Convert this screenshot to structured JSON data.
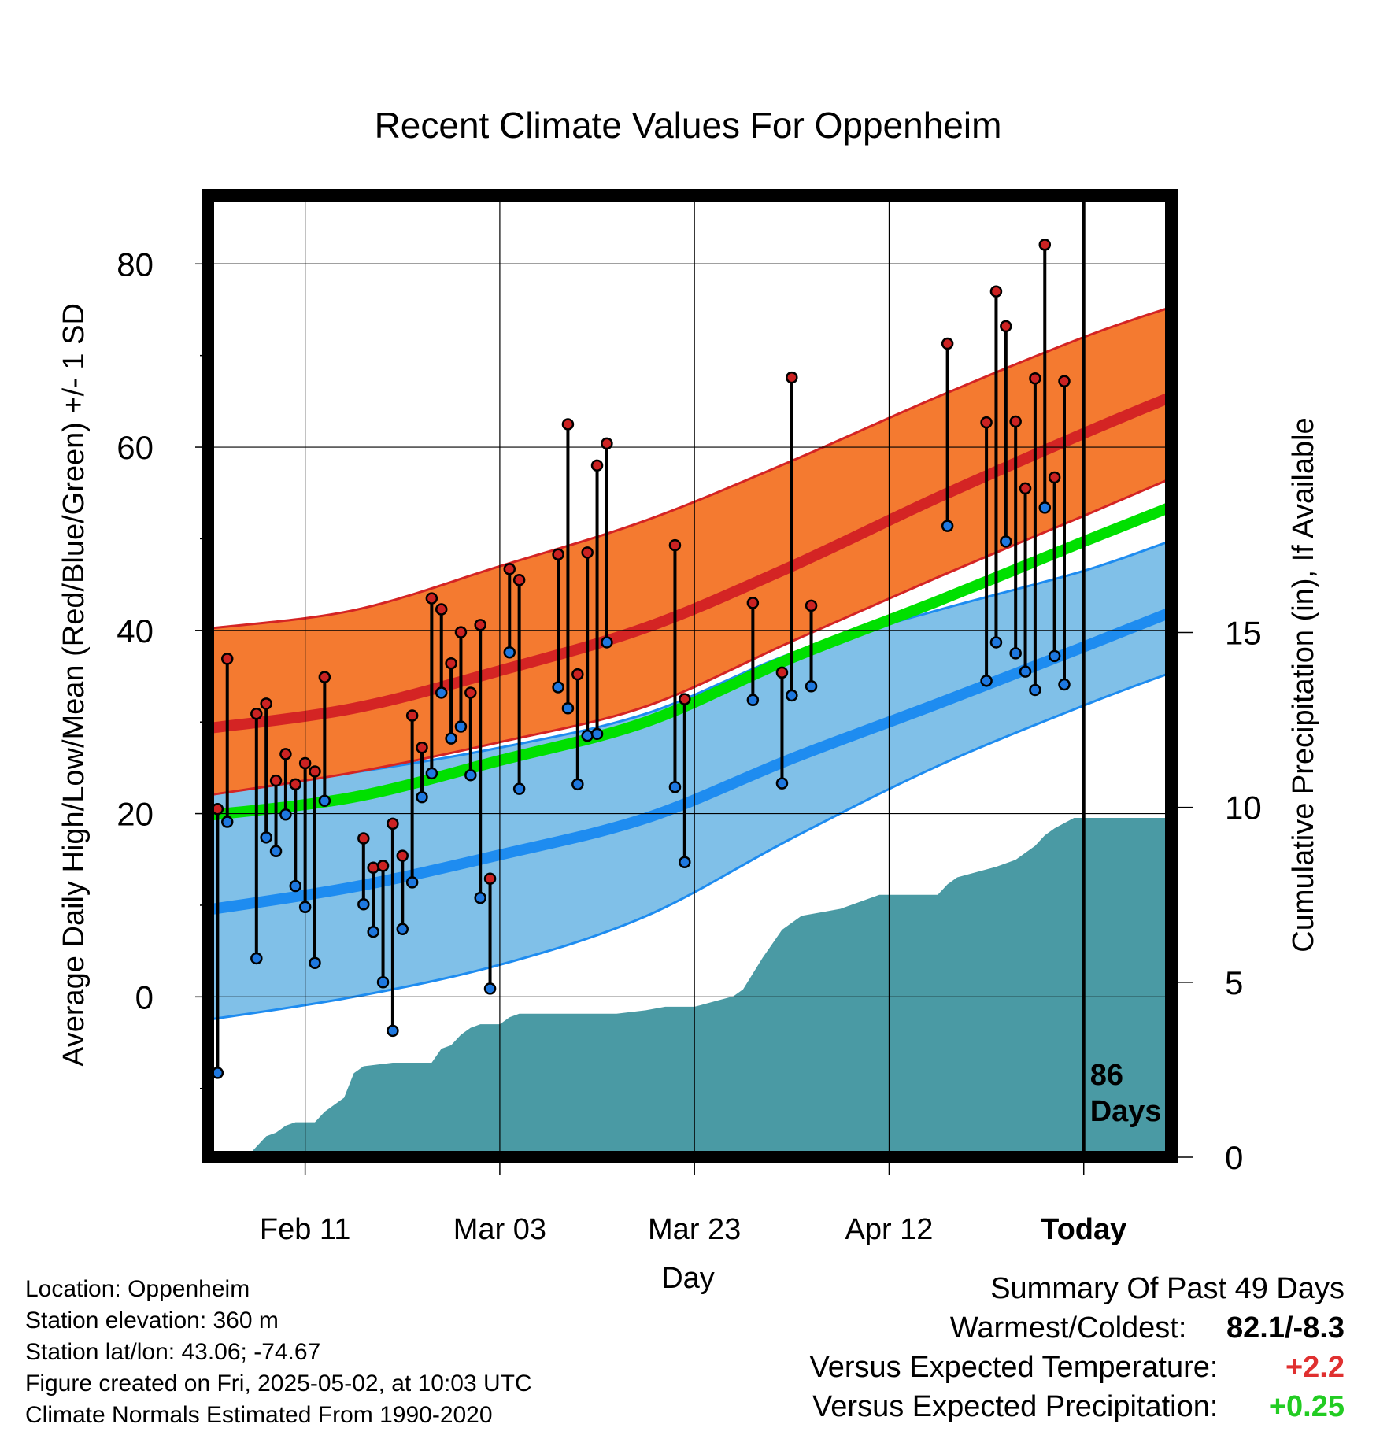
{
  "chart_data": {
    "type": "line",
    "title": "Recent Climate Values For Oppenheim",
    "xlabel": "Day",
    "ylabel": "Average Daily High/Low/Mean (Red/Blue/Green) +/- 1 SD",
    "y2label": "Cumulative Precipitation (in), If Available",
    "x_tick_labels": [
      "Feb 11",
      "Mar 03",
      "Mar 23",
      "Apr 12",
      "Today"
    ],
    "y_ticks": [
      0,
      20,
      40,
      60,
      80
    ],
    "y2_ticks": [
      0,
      5,
      10,
      15
    ],
    "xlim": [
      "2025-02-01",
      "2025-05-11"
    ],
    "ylim": [
      -17.5,
      87.5
    ],
    "y2lim": [
      0,
      27.5
    ],
    "grid": true,
    "today": "2025-05-02",
    "today_marker_label": "86\nDays",
    "normals_x": [
      "2025-02-01",
      "2025-02-16",
      "2025-03-03",
      "2025-03-18",
      "2025-04-02",
      "2025-04-17",
      "2025-05-02",
      "2025-05-11"
    ],
    "normal_high": [
      29.3,
      31.5,
      35.6,
      40.3,
      47.0,
      54.5,
      61.5,
      65.5
    ],
    "normal_high_upper": [
      40.2,
      42.2,
      47.0,
      52.0,
      58.5,
      65.5,
      72.0,
      75.3
    ],
    "normal_high_lower": [
      22.0,
      24.5,
      27.8,
      31.7,
      38.8,
      45.8,
      52.5,
      56.6
    ],
    "normal_mean": [
      19.8,
      21.8,
      25.8,
      30.0,
      37.0,
      43.2,
      49.7,
      53.5
    ],
    "normal_low": [
      9.5,
      12.0,
      15.5,
      19.5,
      26.0,
      32.0,
      38.2,
      42.0
    ],
    "normal_low_upper": [
      22.5,
      24.5,
      27.2,
      30.9,
      37.5,
      42.2,
      46.5,
      49.8
    ],
    "normal_low_lower": [
      -2.5,
      0.0,
      3.5,
      8.8,
      17.3,
      25.2,
      31.8,
      35.4
    ],
    "daily": [
      {
        "date": "2025-02-01",
        "high": 29,
        "low": -5.3
      },
      {
        "date": "2025-02-02",
        "high": 20.5,
        "low": -8.3
      },
      {
        "date": "2025-02-03",
        "high": 36.9,
        "low": 19.1
      },
      {
        "date": "2025-02-06",
        "high": 30.9,
        "low": 4.2
      },
      {
        "date": "2025-02-07",
        "high": 32,
        "low": 17.4
      },
      {
        "date": "2025-02-08",
        "high": 23.6,
        "low": 15.9
      },
      {
        "date": "2025-02-09",
        "high": 26.5,
        "low": 19.9
      },
      {
        "date": "2025-02-10",
        "high": 23.2,
        "low": 12.1
      },
      {
        "date": "2025-02-11",
        "high": 25.5,
        "low": 9.8
      },
      {
        "date": "2025-02-12",
        "high": 24.6,
        "low": 3.7
      },
      {
        "date": "2025-02-13",
        "high": 34.9,
        "low": 21.4
      },
      {
        "date": "2025-02-17",
        "high": 17.3,
        "low": 10.1
      },
      {
        "date": "2025-02-18",
        "high": 14.1,
        "low": 7.1
      },
      {
        "date": "2025-02-19",
        "high": 14.3,
        "low": 1.6
      },
      {
        "date": "2025-02-20",
        "high": 18.9,
        "low": -3.7
      },
      {
        "date": "2025-02-21",
        "high": 15.4,
        "low": 7.4
      },
      {
        "date": "2025-02-22",
        "high": 30.7,
        "low": 12.5
      },
      {
        "date": "2025-02-23",
        "high": 27.2,
        "low": 21.8
      },
      {
        "date": "2025-02-24",
        "high": 43.5,
        "low": 24.4
      },
      {
        "date": "2025-02-25",
        "high": 42.3,
        "low": 33.2
      },
      {
        "date": "2025-02-26",
        "high": 36.4,
        "low": 28.2
      },
      {
        "date": "2025-02-27",
        "high": 39.8,
        "low": 29.5
      },
      {
        "date": "2025-02-28",
        "high": 33.2,
        "low": 24.2
      },
      {
        "date": "2025-03-01",
        "high": 40.6,
        "low": 10.8
      },
      {
        "date": "2025-03-02",
        "high": 12.9,
        "low": 0.9
      },
      {
        "date": "2025-03-04",
        "high": 46.7,
        "low": 37.6
      },
      {
        "date": "2025-03-05",
        "high": 45.5,
        "low": 22.7
      },
      {
        "date": "2025-03-09",
        "high": 48.3,
        "low": 33.8
      },
      {
        "date": "2025-03-10",
        "high": 62.5,
        "low": 31.5
      },
      {
        "date": "2025-03-11",
        "high": 35.2,
        "low": 23.2
      },
      {
        "date": "2025-03-12",
        "high": 48.5,
        "low": 28.5
      },
      {
        "date": "2025-03-13",
        "high": 58.0,
        "low": 28.7
      },
      {
        "date": "2025-03-14",
        "high": 60.4,
        "low": 38.7
      },
      {
        "date": "2025-03-21",
        "high": 49.3,
        "low": 22.9
      },
      {
        "date": "2025-03-22",
        "high": 32.5,
        "low": 14.7
      },
      {
        "date": "2025-03-29",
        "high": 43.0,
        "low": 32.4
      },
      {
        "date": "2025-04-01",
        "high": 35.4,
        "low": 23.3
      },
      {
        "date": "2025-04-02",
        "high": 67.6,
        "low": 32.9
      },
      {
        "date": "2025-04-04",
        "high": 42.7,
        "low": 33.9
      },
      {
        "date": "2025-04-18",
        "high": 71.3,
        "low": 51.4
      },
      {
        "date": "2025-04-22",
        "high": 62.7,
        "low": 34.5
      },
      {
        "date": "2025-04-23",
        "high": 77.0,
        "low": 38.7
      },
      {
        "date": "2025-04-24",
        "high": 73.2,
        "low": 49.7
      },
      {
        "date": "2025-04-25",
        "high": 62.8,
        "low": 37.5
      },
      {
        "date": "2025-04-26",
        "high": 55.5,
        "low": 35.5
      },
      {
        "date": "2025-04-27",
        "high": 67.5,
        "low": 33.5
      },
      {
        "date": "2025-04-28",
        "high": 82.1,
        "low": 53.4
      },
      {
        "date": "2025-04-29",
        "high": 56.7,
        "low": 37.2
      },
      {
        "date": "2025-04-30",
        "high": 67.2,
        "low": 34.1
      }
    ],
    "cumulative_precip": {
      "dates": [
        "2025-02-01",
        "2025-02-05",
        "2025-02-06",
        "2025-02-07",
        "2025-02-08",
        "2025-02-09",
        "2025-02-10",
        "2025-02-11",
        "2025-02-12",
        "2025-02-13",
        "2025-02-14",
        "2025-02-15",
        "2025-02-16",
        "2025-02-17",
        "2025-02-20",
        "2025-02-24",
        "2025-02-25",
        "2025-02-26",
        "2025-02-27",
        "2025-02-28",
        "2025-03-01",
        "2025-03-03",
        "2025-03-04",
        "2025-03-05",
        "2025-03-15",
        "2025-03-18",
        "2025-03-20",
        "2025-03-23",
        "2025-03-27",
        "2025-03-28",
        "2025-03-30",
        "2025-03-31",
        "2025-04-01",
        "2025-04-03",
        "2025-04-05",
        "2025-04-07",
        "2025-04-09",
        "2025-04-11",
        "2025-04-17",
        "2025-04-18",
        "2025-04-19",
        "2025-04-23",
        "2025-04-25",
        "2025-04-27",
        "2025-04-28",
        "2025-04-29",
        "2025-05-01",
        "2025-05-11"
      ],
      "values": [
        0,
        0,
        0.3,
        0.6,
        0.7,
        0.9,
        1.0,
        1.0,
        1.0,
        1.3,
        1.5,
        1.7,
        2.4,
        2.6,
        2.7,
        2.7,
        3.1,
        3.2,
        3.5,
        3.7,
        3.8,
        3.8,
        4.0,
        4.1,
        4.1,
        4.2,
        4.3,
        4.3,
        4.6,
        4.8,
        5.7,
        6.1,
        6.5,
        6.9,
        7.0,
        7.1,
        7.3,
        7.5,
        7.5,
        7.8,
        8.0,
        8.3,
        8.5,
        8.9,
        9.2,
        9.4,
        9.7,
        9.7
      ],
      "cumulative_total": 9.7
    }
  },
  "colors": {
    "high_band": "#F47A30",
    "high_line": "#D42424",
    "mean_line": "#00E000",
    "low_band": "#80C0E8",
    "low_line": "#1E8CF0",
    "overlap_band": "#8A1018",
    "precip_fill": "#4A9AA4",
    "high_marker": "#CC2222",
    "low_marker": "#1E78E0",
    "warm_anomaly": "#E03030",
    "wet_anomaly": "#22CC22"
  },
  "info": {
    "location": "Location: Oppenheim",
    "elevation": "Station elevation: 360 m",
    "latlon": "Station lat/lon: 43.06; -74.67",
    "created": "Figure created on Fri, 2025-05-02, at 10:03 UTC",
    "normals": "Climate Normals Estimated From 1990-2020"
  },
  "summary": {
    "heading": "Summary Of Past 49 Days",
    "warmest_label": "Warmest/Coldest:",
    "warmest_value": "82.1/-8.3",
    "temp_label": "Versus Expected Temperature:",
    "temp_value": "+2.2",
    "precip_label": "Versus Expected Precipitation:",
    "precip_value": "+0.25"
  }
}
